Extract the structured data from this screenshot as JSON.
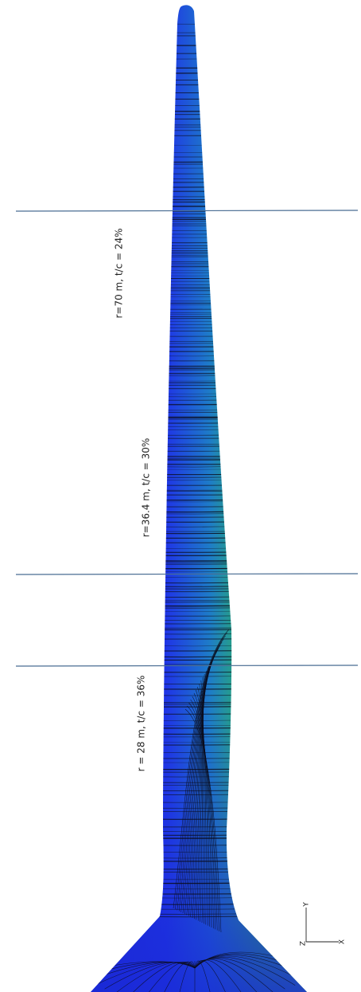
{
  "sections": [
    {
      "id": "section-r70",
      "label": "r=70 m, t/c = 24%"
    },
    {
      "id": "section-r36",
      "label": "r=36.4 m, t/c = 30%"
    },
    {
      "id": "section-r28",
      "label": "r = 28 m, t/c = 36%"
    }
  ],
  "axes": {
    "y_label": "Y",
    "x_label": "X",
    "z_label": "Z"
  },
  "colors": {
    "blade_blue": "#1f2ee0",
    "blade_mid": "#1e78c8",
    "blade_green": "#35d32a",
    "section_line": "#4a6d93",
    "streamline": "#0b0b1a"
  }
}
